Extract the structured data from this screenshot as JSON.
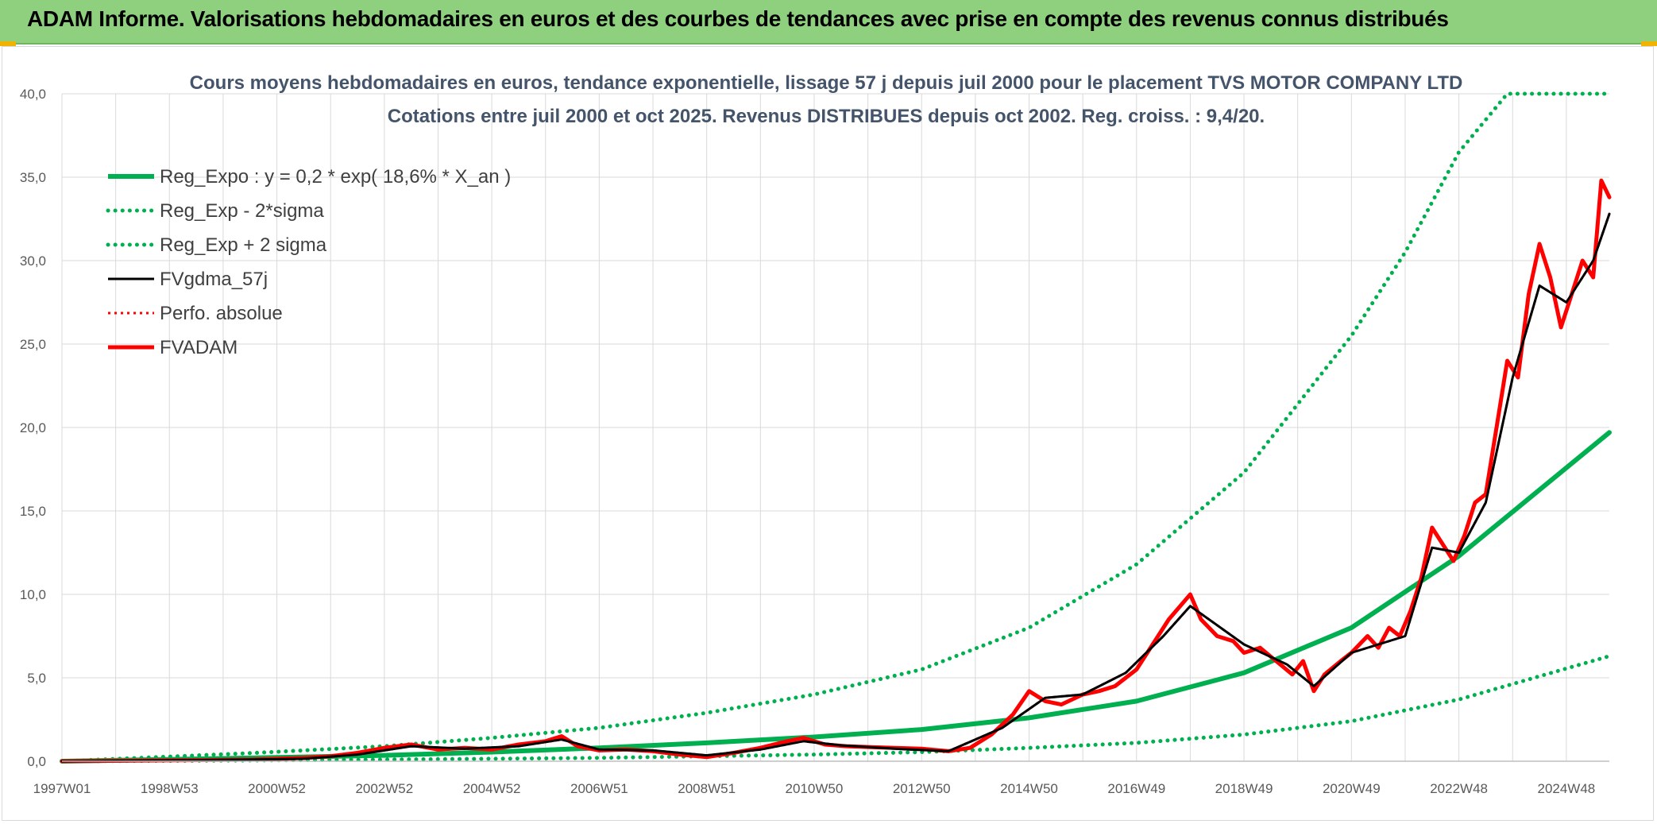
{
  "header": {
    "title": "ADAM Informe. Valorisations hebdomadaires en euros et des courbes de tendances avec prise en compte des revenus connus distribués"
  },
  "colors": {
    "banner": "#8fd07f",
    "green": "#00b050",
    "black": "#000000",
    "red": "#ff0000",
    "grid": "#d9d9d9"
  },
  "chart_data": {
    "type": "line",
    "title": "Cours moyens hebdomadaires en euros, tendance exponentielle, lissage 57 j depuis juil 2000 pour le placement TVS MOTOR COMPANY LTD",
    "subtitle": "Cotations entre juil 2000 et oct 2025. Revenus DISTRIBUES depuis oct 2002. Reg. croiss. : 9,4/20.",
    "x_tick_labels": [
      "1997W01",
      "1998W53",
      "2000W52",
      "2002W52",
      "2004W52",
      "2006W51",
      "2008W51",
      "2010W50",
      "2012W50",
      "2014W50",
      "2016W49",
      "2018W49",
      "2020W49",
      "2022W48",
      "2024W48"
    ],
    "x_ticks": [
      1997.0,
      1999.0,
      2001.0,
      2003.0,
      2005.0,
      2007.0,
      2009.0,
      2011.0,
      2013.0,
      2015.0,
      2017.0,
      2019.0,
      2021.0,
      2023.0,
      2025.0
    ],
    "xlim": [
      1997.0,
      2025.8
    ],
    "ylim": [
      0,
      40
    ],
    "y_tick_labels": [
      "0,0",
      "5,0",
      "10,0",
      "15,0",
      "20,0",
      "25,0",
      "30,0",
      "35,0",
      "40,0"
    ],
    "y_ticks": [
      0,
      5,
      10,
      15,
      20,
      25,
      30,
      35,
      40
    ],
    "grid": true,
    "legend_position": "top-left",
    "series": [
      {
        "name": "Reg_Expo : y = 0,2 * exp( 18,6% *  X_an )",
        "color": "#00b050",
        "style": "solid",
        "x": [
          1997.0,
          2000.6,
          2003,
          2005,
          2007,
          2009,
          2011,
          2013,
          2015,
          2017,
          2019,
          2021,
          2023,
          2025.8
        ],
        "y": [
          0.0,
          0.2,
          0.35,
          0.55,
          0.8,
          1.1,
          1.45,
          1.9,
          2.6,
          3.6,
          5.3,
          8.0,
          12.3,
          19.7
        ]
      },
      {
        "name": "Reg_Exp - 2*sigma",
        "color": "#00b050",
        "style": "dotted",
        "x": [
          1997.0,
          2000.6,
          2003,
          2005,
          2007,
          2009,
          2011,
          2013,
          2015,
          2017,
          2019,
          2021,
          2023,
          2025.8
        ],
        "y": [
          0.0,
          0.05,
          0.1,
          0.15,
          0.2,
          0.3,
          0.4,
          0.55,
          0.8,
          1.1,
          1.6,
          2.4,
          3.7,
          6.3
        ]
      },
      {
        "name": "Reg_Exp + 2 sigma",
        "color": "#00b050",
        "style": "dotted",
        "x": [
          1997.0,
          2000.6,
          2003,
          2005,
          2007,
          2009,
          2011,
          2013,
          2015,
          2017,
          2019,
          2021,
          2022,
          2023,
          2023.9,
          2025.8
        ],
        "y": [
          0.0,
          0.5,
          0.9,
          1.4,
          2.0,
          2.9,
          4.0,
          5.5,
          8.0,
          11.8,
          17.3,
          25.5,
          30.5,
          36.5,
          40.0,
          40.0
        ]
      },
      {
        "name": "FVgdma_57j",
        "color": "#000000",
        "style": "solid",
        "x": [
          1997.0,
          2000.55,
          2001.5,
          2002.5,
          2003.5,
          2004.5,
          2005.5,
          2006.3,
          2007.0,
          2008.0,
          2009.0,
          2010.0,
          2010.8,
          2011.5,
          2012.5,
          2013.5,
          2014.5,
          2015.3,
          2016.0,
          2016.8,
          2017.5,
          2018.0,
          2019.0,
          2019.8,
          2020.3,
          2021.0,
          2021.5,
          2022.0,
          2022.5,
          2023.0,
          2023.5,
          2024.0,
          2024.5,
          2025.0,
          2025.5,
          2025.8
        ],
        "y": [
          0.0,
          0.1,
          0.15,
          0.4,
          0.9,
          0.75,
          0.9,
          1.3,
          0.7,
          0.65,
          0.35,
          0.7,
          1.2,
          0.95,
          0.75,
          0.6,
          2.0,
          3.8,
          4.0,
          5.3,
          7.5,
          9.3,
          7.0,
          5.8,
          4.5,
          6.5,
          7.0,
          7.5,
          12.8,
          12.5,
          15.5,
          23.0,
          28.5,
          27.5,
          30.0,
          32.8
        ]
      },
      {
        "name": "Perfo. absolue",
        "color": "#ff0000",
        "style": "dotted",
        "x": [
          1997.0,
          2000.55,
          2001.5,
          2002.5,
          2003.5,
          2004.5,
          2005.5,
          2006.3,
          2007.0,
          2008.0,
          2009.0,
          2010.0,
          2010.8,
          2011.5,
          2012.5,
          2013.5,
          2014.5,
          2015.3,
          2016.0,
          2016.8,
          2017.5,
          2018.0,
          2019.0,
          2019.8,
          2020.3,
          2021.0,
          2021.5,
          2022.0,
          2022.5,
          2023.0,
          2023.5,
          2024.0,
          2024.5,
          2025.0,
          2025.5,
          2025.8
        ],
        "y": [
          0.0,
          0.1,
          0.15,
          0.4,
          0.9,
          0.75,
          0.9,
          1.3,
          0.7,
          0.65,
          0.35,
          0.7,
          1.2,
          0.95,
          0.75,
          0.6,
          2.0,
          3.8,
          4.0,
          5.3,
          7.5,
          9.3,
          7.0,
          5.8,
          4.5,
          6.5,
          7.0,
          7.5,
          12.8,
          12.5,
          15.5,
          23.0,
          28.5,
          27.5,
          30.0,
          32.8
        ]
      },
      {
        "name": "FVADAM",
        "color": "#ff0000",
        "style": "solid",
        "x": [
          1997.0,
          2000.55,
          2001.0,
          2001.5,
          2002.0,
          2002.5,
          2003.0,
          2003.5,
          2004.0,
          2004.5,
          2005.0,
          2005.5,
          2006.0,
          2006.3,
          2006.6,
          2007.0,
          2007.5,
          2008.0,
          2008.5,
          2009.0,
          2009.5,
          2010.0,
          2010.5,
          2010.8,
          2011.2,
          2011.6,
          2012.0,
          2012.5,
          2013.0,
          2013.5,
          2013.9,
          2014.3,
          2014.7,
          2015.0,
          2015.3,
          2015.6,
          2016.0,
          2016.3,
          2016.6,
          2017.0,
          2017.3,
          2017.6,
          2018.0,
          2018.2,
          2018.5,
          2018.8,
          2019.0,
          2019.3,
          2019.6,
          2019.9,
          2020.1,
          2020.3,
          2020.5,
          2020.8,
          2021.0,
          2021.3,
          2021.5,
          2021.7,
          2021.9,
          2022.1,
          2022.3,
          2022.5,
          2022.7,
          2022.9,
          2023.1,
          2023.3,
          2023.5,
          2023.7,
          2023.9,
          2024.1,
          2024.3,
          2024.5,
          2024.7,
          2024.9,
          2025.1,
          2025.3,
          2025.5,
          2025.65,
          2025.8
        ],
        "y": [
          0.0,
          0.1,
          0.15,
          0.2,
          0.3,
          0.5,
          0.8,
          1.0,
          0.7,
          0.8,
          0.7,
          1.0,
          1.2,
          1.5,
          0.9,
          0.65,
          0.7,
          0.6,
          0.4,
          0.25,
          0.5,
          0.8,
          1.2,
          1.4,
          1.0,
          0.9,
          0.85,
          0.8,
          0.75,
          0.6,
          0.8,
          1.6,
          2.8,
          4.2,
          3.6,
          3.4,
          4.0,
          4.2,
          4.5,
          5.5,
          7.0,
          8.5,
          10.0,
          8.5,
          7.5,
          7.2,
          6.5,
          6.8,
          6.0,
          5.2,
          6.0,
          4.2,
          5.2,
          6.0,
          6.5,
          7.5,
          6.8,
          8.0,
          7.5,
          9.0,
          11.0,
          14.0,
          13.0,
          12.0,
          13.5,
          15.5,
          16.0,
          20.0,
          24.0,
          23.0,
          28.0,
          31.0,
          29.0,
          26.0,
          28.0,
          30.0,
          29.0,
          34.8,
          33.8
        ]
      }
    ]
  }
}
